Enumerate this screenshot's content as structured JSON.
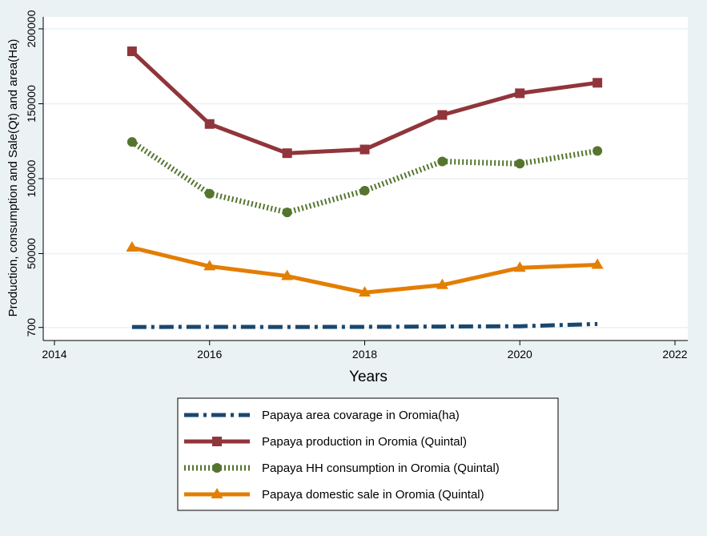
{
  "chart_data": {
    "type": "line",
    "title": "",
    "xlabel": "Years",
    "ylabel": "Production, consumption and Sale(Qt) and area(Ha)",
    "xlim": [
      2014,
      2022
    ],
    "ylim": [
      0,
      200000
    ],
    "x_ticks": [
      "2014",
      "2016",
      "2018",
      "2020",
      "2022"
    ],
    "y_ticks": [
      {
        "value": 700,
        "label": "700"
      },
      {
        "value": 50000,
        "label": "50000"
      },
      {
        "value": 100000,
        "label": "100000"
      },
      {
        "value": 150000,
        "label": "150000"
      },
      {
        "value": 200000,
        "label": "200000"
      }
    ],
    "grid": true,
    "legend_position": "bottom",
    "x": [
      2015,
      2016,
      2017,
      2018,
      2019,
      2020,
      2021
    ],
    "series": [
      {
        "name": "Papaya area covarage in Oromia(ha)",
        "color": "#1a476f",
        "marker": "none",
        "style": "dash-dot",
        "values": [
          1000,
          1100,
          1000,
          1100,
          1300,
          1500,
          3000
        ]
      },
      {
        "name": "Papaya production in Oromia (Quintal)",
        "color": "#90353b",
        "marker": "square",
        "style": "solid",
        "values": [
          185000,
          136500,
          117000,
          119500,
          142500,
          157000,
          164000
        ]
      },
      {
        "name": "Papaya HH consumption in Oromia (Quintal)",
        "color": "#55752f",
        "marker": "circle",
        "style": "dotted",
        "values": [
          124500,
          90000,
          77500,
          92000,
          111500,
          110000,
          118500
        ]
      },
      {
        "name": "Papaya domestic sale in Oromia (Quintal)",
        "color": "#e37e00",
        "marker": "triangle",
        "style": "solid",
        "values": [
          54000,
          41500,
          35000,
          24000,
          29000,
          40500,
          42500
        ]
      }
    ]
  }
}
